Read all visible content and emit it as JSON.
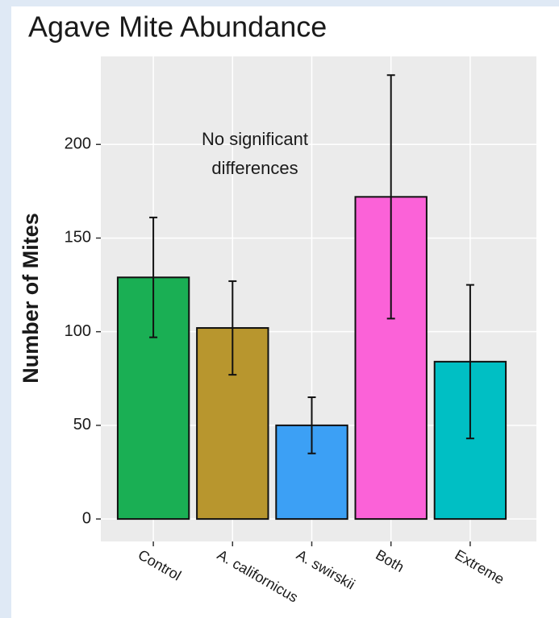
{
  "chart_data": {
    "type": "bar",
    "title": "Agave Mite Abundance",
    "y_label": "Number of Mites",
    "annotation": [
      "No significant",
      "differences"
    ],
    "categories": [
      "Control",
      "A. californicus",
      "A. swirskii",
      "Both",
      "Extreme"
    ],
    "values": [
      129,
      102,
      50,
      172,
      84
    ],
    "errors": [
      32,
      25,
      15,
      65,
      41
    ],
    "colors": [
      "#1aaf54",
      "#b8962e",
      "#3ca0f5",
      "#fb62d8",
      "#00bfc4"
    ],
    "ylim": [
      -12,
      247
    ],
    "yticks": [
      0,
      50,
      100,
      150,
      200
    ],
    "grid": true
  }
}
